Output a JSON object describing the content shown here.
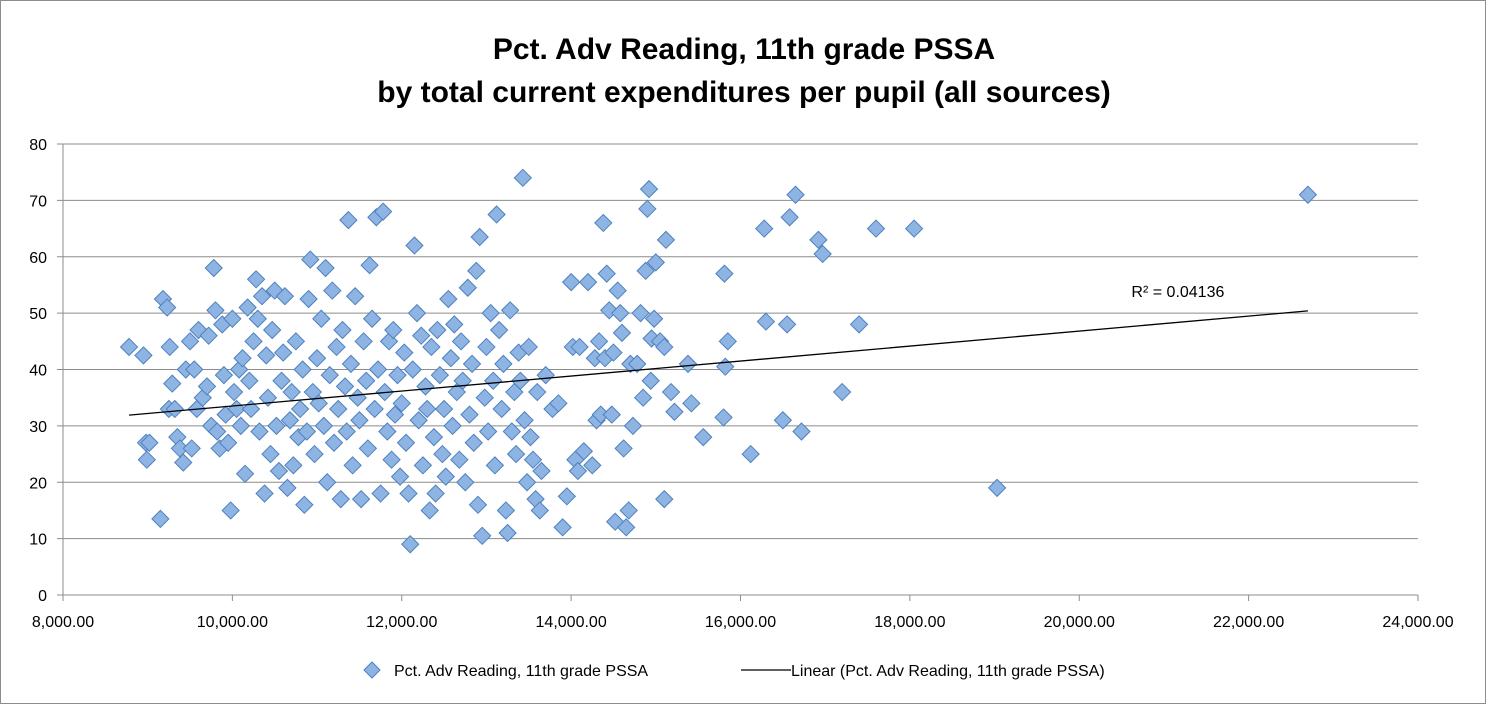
{
  "chart_data": {
    "type": "scatter",
    "title": [
      "Pct. Adv Reading, 11th grade PSSA",
      "by total current expenditures per pupil (all sources)"
    ],
    "xlabel": "",
    "ylabel": "",
    "xlim": [
      8000,
      24000
    ],
    "ylim": [
      0,
      80
    ],
    "x_ticks": [
      8000,
      10000,
      12000,
      14000,
      16000,
      18000,
      20000,
      22000,
      24000
    ],
    "x_tick_labels": [
      "8,000.00",
      "10,000.00",
      "12,000.00",
      "14,000.00",
      "16,000.00",
      "18,000.00",
      "20,000.00",
      "22,000.00",
      "24,000.00"
    ],
    "y_ticks": [
      0,
      10,
      20,
      30,
      40,
      50,
      60,
      70,
      80
    ],
    "y_tick_labels": [
      "0",
      "10",
      "20",
      "30",
      "40",
      "50",
      "60",
      "70",
      "80"
    ],
    "grid": "horizontal",
    "legend_position": "bottom",
    "colors": {
      "marker_fill": "#8eb4e3",
      "marker_stroke": "#4f81bd",
      "trendline": "#000000",
      "grid": "#8c8c8c"
    },
    "series": [
      {
        "name": "Pct. Adv Reading, 11th grade PSSA",
        "marker": "diamond",
        "points": [
          [
            8780,
            44
          ],
          [
            8950,
            42.5
          ],
          [
            8980,
            27
          ],
          [
            8990,
            24
          ],
          [
            9020,
            27
          ],
          [
            9150,
            13.5
          ],
          [
            9180,
            52.5
          ],
          [
            9230,
            51
          ],
          [
            9250,
            33
          ],
          [
            9260,
            44
          ],
          [
            9290,
            37.5
          ],
          [
            9320,
            33
          ],
          [
            9350,
            28
          ],
          [
            9380,
            26
          ],
          [
            9420,
            23.5
          ],
          [
            9450,
            40
          ],
          [
            9500,
            45
          ],
          [
            9520,
            26
          ],
          [
            9550,
            40
          ],
          [
            9580,
            33
          ],
          [
            9600,
            47
          ],
          [
            9650,
            35
          ],
          [
            9700,
            37
          ],
          [
            9720,
            46
          ],
          [
            9750,
            30
          ],
          [
            9780,
            58
          ],
          [
            9800,
            50.5
          ],
          [
            9820,
            29
          ],
          [
            9850,
            26
          ],
          [
            9880,
            48
          ],
          [
            9900,
            39
          ],
          [
            9920,
            32
          ],
          [
            9950,
            27
          ],
          [
            9980,
            15
          ],
          [
            10000,
            49
          ],
          [
            10020,
            36
          ],
          [
            10050,
            33
          ],
          [
            10080,
            40
          ],
          [
            10100,
            30
          ],
          [
            10120,
            42
          ],
          [
            10150,
            21.5
          ],
          [
            10180,
            51
          ],
          [
            10200,
            38
          ],
          [
            10220,
            33
          ],
          [
            10250,
            45
          ],
          [
            10280,
            56
          ],
          [
            10300,
            49
          ],
          [
            10320,
            29
          ],
          [
            10350,
            53
          ],
          [
            10380,
            18
          ],
          [
            10400,
            42.5
          ],
          [
            10420,
            35
          ],
          [
            10450,
            25
          ],
          [
            10470,
            47
          ],
          [
            10500,
            54
          ],
          [
            10520,
            30
          ],
          [
            10550,
            22
          ],
          [
            10580,
            38
          ],
          [
            10600,
            43
          ],
          [
            10620,
            53
          ],
          [
            10650,
            19
          ],
          [
            10680,
            31
          ],
          [
            10700,
            36
          ],
          [
            10720,
            23
          ],
          [
            10750,
            45
          ],
          [
            10780,
            28
          ],
          [
            10800,
            33
          ],
          [
            10830,
            40
          ],
          [
            10850,
            16
          ],
          [
            10880,
            29
          ],
          [
            10900,
            52.5
          ],
          [
            10920,
            59.5
          ],
          [
            10950,
            36
          ],
          [
            10970,
            25
          ],
          [
            11000,
            42
          ],
          [
            11020,
            34
          ],
          [
            11050,
            49
          ],
          [
            11080,
            30
          ],
          [
            11100,
            58
          ],
          [
            11120,
            20
          ],
          [
            11150,
            39
          ],
          [
            11180,
            54
          ],
          [
            11200,
            27
          ],
          [
            11230,
            44
          ],
          [
            11250,
            33
          ],
          [
            11280,
            17
          ],
          [
            11300,
            47
          ],
          [
            11330,
            37
          ],
          [
            11350,
            29
          ],
          [
            11370,
            66.5
          ],
          [
            11400,
            41
          ],
          [
            11420,
            23
          ],
          [
            11450,
            53
          ],
          [
            11480,
            35
          ],
          [
            11500,
            31
          ],
          [
            11520,
            17
          ],
          [
            11550,
            45
          ],
          [
            11580,
            38
          ],
          [
            11600,
            26
          ],
          [
            11620,
            58.5
          ],
          [
            11650,
            49
          ],
          [
            11680,
            33
          ],
          [
            11700,
            67
          ],
          [
            11720,
            40
          ],
          [
            11750,
            18
          ],
          [
            11780,
            68
          ],
          [
            11800,
            36
          ],
          [
            11830,
            29
          ],
          [
            11850,
            45
          ],
          [
            11880,
            24
          ],
          [
            11900,
            47
          ],
          [
            11920,
            32
          ],
          [
            11950,
            39
          ],
          [
            11980,
            21
          ],
          [
            12000,
            34
          ],
          [
            12030,
            43
          ],
          [
            12050,
            27
          ],
          [
            12080,
            18
          ],
          [
            12100,
            9
          ],
          [
            12130,
            40
          ],
          [
            12150,
            62
          ],
          [
            12180,
            50
          ],
          [
            12200,
            31
          ],
          [
            12230,
            46
          ],
          [
            12250,
            23
          ],
          [
            12280,
            37
          ],
          [
            12300,
            33
          ],
          [
            12330,
            15
          ],
          [
            12350,
            44
          ],
          [
            12380,
            28
          ],
          [
            12400,
            18
          ],
          [
            12420,
            47
          ],
          [
            12450,
            39
          ],
          [
            12480,
            25
          ],
          [
            12500,
            33
          ],
          [
            12520,
            21
          ],
          [
            12550,
            52.5
          ],
          [
            12580,
            42
          ],
          [
            12600,
            30
          ],
          [
            12620,
            48
          ],
          [
            12650,
            36
          ],
          [
            12680,
            24
          ],
          [
            12700,
            45
          ],
          [
            12720,
            38
          ],
          [
            12750,
            20
          ],
          [
            12780,
            54.5
          ],
          [
            12800,
            32
          ],
          [
            12830,
            41
          ],
          [
            12850,
            27
          ],
          [
            12880,
            57.5
          ],
          [
            12900,
            16
          ],
          [
            12920,
            63.5
          ],
          [
            12950,
            10.5
          ],
          [
            12980,
            35
          ],
          [
            13000,
            44
          ],
          [
            13020,
            29
          ],
          [
            13050,
            50
          ],
          [
            13080,
            38
          ],
          [
            13100,
            23
          ],
          [
            13120,
            67.5
          ],
          [
            13150,
            47
          ],
          [
            13180,
            33
          ],
          [
            13200,
            41
          ],
          [
            13230,
            15
          ],
          [
            13250,
            11
          ],
          [
            13280,
            50.5
          ],
          [
            13300,
            29
          ],
          [
            13330,
            36
          ],
          [
            13350,
            25
          ],
          [
            13380,
            43
          ],
          [
            13400,
            38
          ],
          [
            13430,
            74
          ],
          [
            13450,
            31
          ],
          [
            13480,
            20
          ],
          [
            13500,
            44
          ],
          [
            13520,
            28
          ],
          [
            13550,
            24
          ],
          [
            13580,
            17
          ],
          [
            13600,
            36
          ],
          [
            13630,
            15
          ],
          [
            13650,
            22
          ],
          [
            13700,
            39
          ],
          [
            13780,
            33
          ],
          [
            13850,
            34
          ],
          [
            13900,
            12
          ],
          [
            13950,
            17.5
          ],
          [
            14000,
            55.5
          ],
          [
            14020,
            44
          ],
          [
            14050,
            24
          ],
          [
            14080,
            22
          ],
          [
            14100,
            44
          ],
          [
            14150,
            25.5
          ],
          [
            14200,
            55.5
          ],
          [
            14250,
            23
          ],
          [
            14280,
            42
          ],
          [
            14300,
            31
          ],
          [
            14330,
            45
          ],
          [
            14350,
            32
          ],
          [
            14380,
            66
          ],
          [
            14400,
            42
          ],
          [
            14420,
            57
          ],
          [
            14450,
            50.5
          ],
          [
            14480,
            32
          ],
          [
            14500,
            43
          ],
          [
            14520,
            13
          ],
          [
            14550,
            54
          ],
          [
            14580,
            50
          ],
          [
            14600,
            46.5
          ],
          [
            14620,
            26
          ],
          [
            14650,
            12
          ],
          [
            14680,
            15
          ],
          [
            14700,
            41
          ],
          [
            14730,
            30
          ],
          [
            14780,
            41
          ],
          [
            14820,
            50
          ],
          [
            14850,
            35
          ],
          [
            14880,
            57.5
          ],
          [
            14900,
            68.5
          ],
          [
            14920,
            72
          ],
          [
            14940,
            38
          ],
          [
            14950,
            45.5
          ],
          [
            14980,
            49
          ],
          [
            15000,
            59
          ],
          [
            15050,
            45
          ],
          [
            15100,
            44
          ],
          [
            15100,
            17
          ],
          [
            15120,
            63
          ],
          [
            15180,
            36
          ],
          [
            15220,
            32.5
          ],
          [
            15380,
            41
          ],
          [
            15420,
            34
          ],
          [
            15560,
            28
          ],
          [
            15800,
            31.5
          ],
          [
            15810,
            57
          ],
          [
            15820,
            40.5
          ],
          [
            15850,
            45
          ],
          [
            16120,
            25
          ],
          [
            16280,
            65
          ],
          [
            16300,
            48.5
          ],
          [
            16500,
            31
          ],
          [
            16550,
            48
          ],
          [
            16580,
            67
          ],
          [
            16650,
            71
          ],
          [
            16720,
            29
          ],
          [
            16920,
            63
          ],
          [
            16970,
            60.5
          ],
          [
            17200,
            36
          ],
          [
            17400,
            48
          ],
          [
            17600,
            65
          ],
          [
            18050,
            65
          ],
          [
            19030,
            19
          ],
          [
            22700,
            71
          ]
        ]
      }
    ],
    "trendline": {
      "name": "Linear (Pct. Adv Reading, 11th grade PSSA)",
      "type": "linear",
      "x": [
        8780,
        22700
      ],
      "y": [
        31.9,
        50.4
      ],
      "r2_label": "R² = 0.04136"
    }
  }
}
